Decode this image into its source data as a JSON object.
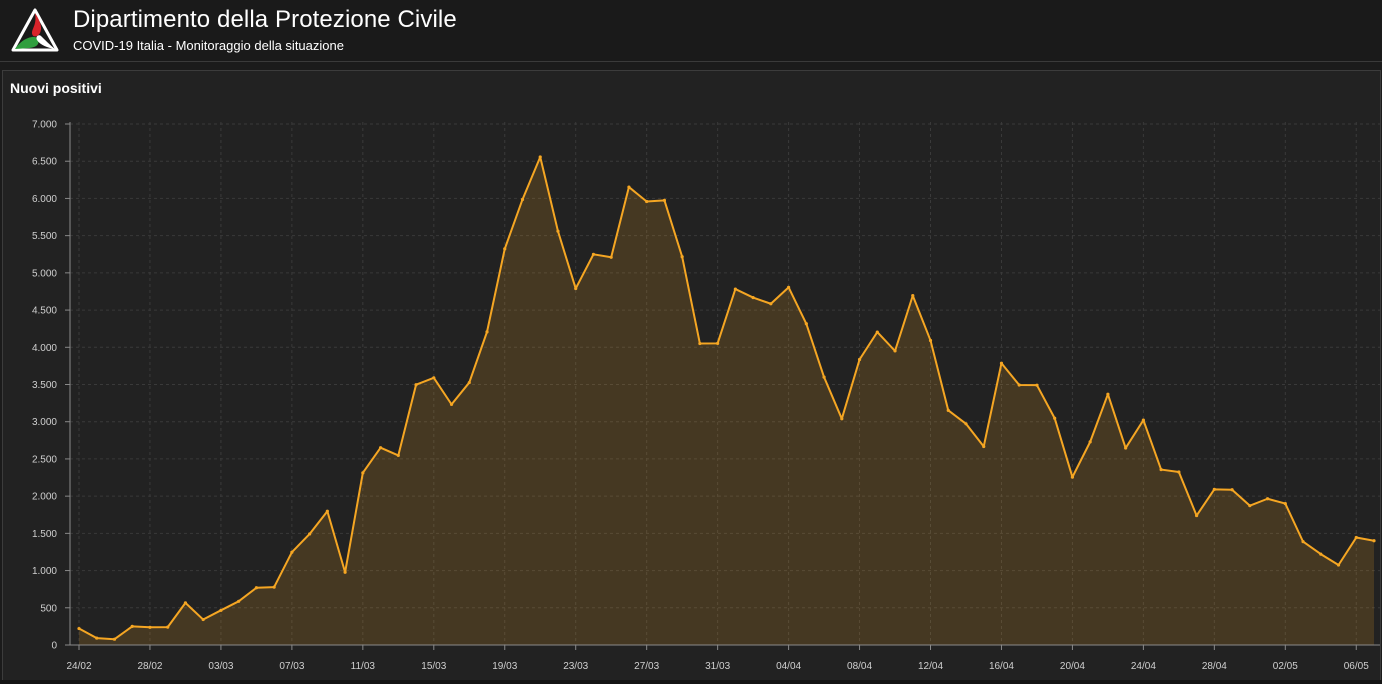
{
  "header": {
    "title": "Dipartimento della Protezione Civile",
    "subtitle": "COVID-19 Italia - Monitoraggio della situazione"
  },
  "panel": {
    "title": "Nuovi positivi"
  },
  "colors": {
    "line": "#f5a623",
    "area": "rgba(245,166,35,0.17)",
    "grid": "#3a3a3a",
    "axis": "#8a8a8a",
    "tick_text": "#d0d0d0",
    "logo_red": "#d8232a",
    "logo_green": "#2f9e3e"
  },
  "chart_data": {
    "type": "area",
    "title": "Nuovi positivi",
    "xlabel": "",
    "ylabel": "",
    "ylim": [
      0,
      7000
    ],
    "y_ticks": [
      0,
      500,
      1000,
      1500,
      2000,
      2500,
      3000,
      3500,
      4000,
      4500,
      5000,
      5500,
      6000,
      6500,
      7000
    ],
    "y_tick_labels": [
      "0",
      "500",
      "1.000",
      "1.500",
      "2.000",
      "2.500",
      "3.000",
      "3.500",
      "4.000",
      "4.500",
      "5.000",
      "5.500",
      "6.000",
      "6.500",
      "7.000"
    ],
    "x_tick_labels": [
      "24/02",
      "28/02",
      "03/03",
      "07/03",
      "11/03",
      "15/03",
      "19/03",
      "23/03",
      "27/03",
      "31/03",
      "04/04",
      "08/04",
      "12/04",
      "16/04",
      "20/04",
      "24/04",
      "28/04",
      "02/05",
      "06/05"
    ],
    "grid": true,
    "series": [
      {
        "x": [
          "24/02",
          "25/02",
          "26/02",
          "27/02",
          "28/02",
          "29/02",
          "01/03",
          "02/03",
          "03/03",
          "04/03",
          "05/03",
          "06/03",
          "07/03",
          "08/03",
          "09/03",
          "10/03",
          "11/03",
          "12/03",
          "13/03",
          "14/03",
          "15/03",
          "16/03",
          "17/03",
          "18/03",
          "19/03",
          "20/03",
          "21/03",
          "22/03",
          "23/03",
          "24/03",
          "25/03",
          "26/03",
          "27/03",
          "28/03",
          "29/03",
          "30/03",
          "31/03",
          "01/04",
          "02/04",
          "03/04",
          "04/04",
          "05/04",
          "06/04",
          "07/04",
          "08/04",
          "09/04",
          "10/04",
          "11/04",
          "12/04",
          "13/04",
          "14/04",
          "15/04",
          "16/04",
          "17/04",
          "18/04",
          "19/04",
          "20/04",
          "21/04",
          "22/04",
          "23/04",
          "24/04",
          "25/04",
          "26/04",
          "27/04",
          "28/04",
          "29/04",
          "30/04",
          "01/05",
          "02/05",
          "03/05",
          "04/05",
          "05/05",
          "06/05",
          "07/05"
        ],
        "values": [
          221,
          93,
          78,
          250,
          238,
          240,
          566,
          342,
          466,
          587,
          769,
          778,
          1247,
          1492,
          1797,
          977,
          2313,
          2651,
          2547,
          3497,
          3590,
          3233,
          3526,
          4207,
          5322,
          5986,
          6557,
          5560,
          4789,
          5249,
          5210,
          6153,
          5959,
          5974,
          5217,
          4050,
          4053,
          4782,
          4668,
          4585,
          4805,
          4316,
          3599,
          3039,
          3836,
          4204,
          3951,
          4694,
          4092,
          3153,
          2972,
          2667,
          3786,
          3493,
          3491,
          3047,
          2256,
          2729,
          3370,
          2646,
          3021,
          2357,
          2324,
          1739,
          2091,
          2086,
          1872,
          1965,
          1900,
          1389,
          1221,
          1075,
          1444,
          1401
        ]
      }
    ]
  }
}
